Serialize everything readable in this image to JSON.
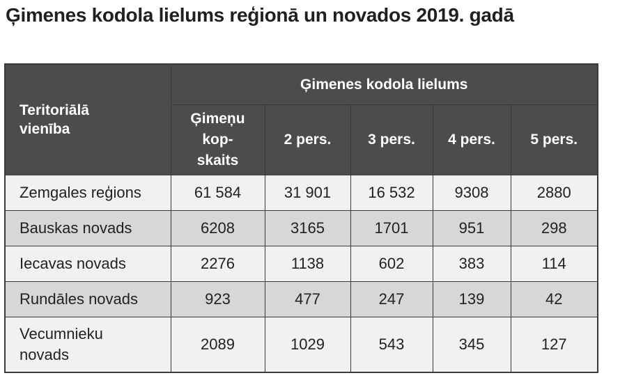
{
  "title": "Ģimenes kodola lielums reģionā un novados 2019. gadā",
  "table": {
    "unit_header": [
      "Teritoriālā",
      "vienība"
    ],
    "group_header": "Ģimenes kodola lielums",
    "col_headers": {
      "total": [
        "Ģimeņu",
        "kop-",
        "skaits"
      ],
      "p2": "2 pers.",
      "p3": "3 pers.",
      "p4": "4 pers.",
      "p5": "5 pers."
    },
    "rows": [
      {
        "name": "Zemgales reģions",
        "total": "61 584",
        "p2": "31 901",
        "p3": "16 532",
        "p4": "9308",
        "p5": "2880"
      },
      {
        "name": "Bauskas novads",
        "total": "6208",
        "p2": "3165",
        "p3": "1701",
        "p4": "951",
        "p5": "298"
      },
      {
        "name": "Iecavas novads",
        "total": "2276",
        "p2": "1138",
        "p3": "602",
        "p4": "383",
        "p5": "114"
      },
      {
        "name": "Rundāles novads",
        "total": "923",
        "p2": "477",
        "p3": "247",
        "p4": "139",
        "p5": "42"
      },
      {
        "name_lines": [
          "Vecumnieku",
          "novads"
        ],
        "total": "2089",
        "p2": "1029",
        "p3": "543",
        "p4": "345",
        "p5": "127"
      }
    ]
  }
}
